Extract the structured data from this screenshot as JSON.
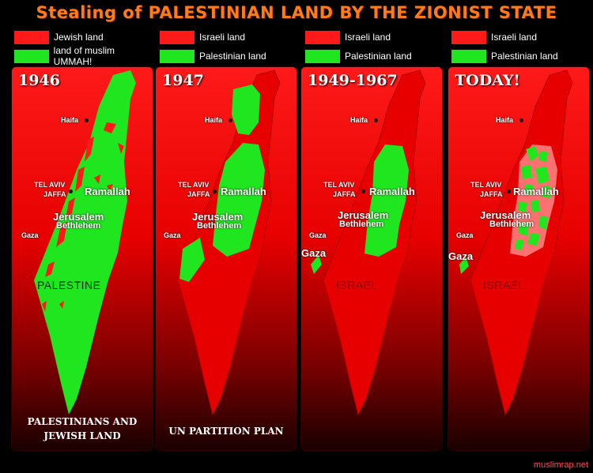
{
  "title": "Stealing of PALESTINIAN LAND BY THE ZIONIST STATE",
  "colors": {
    "red": "#ff1a1a",
    "green": "#1fe61f",
    "pink": "#ff7070",
    "title": "#ff7a1a"
  },
  "credit": "muslimrap.net",
  "panels": [
    {
      "legend": [
        {
          "color": "red",
          "label": "Jewish land"
        },
        {
          "color": "green",
          "label": "land of muslim UMMAH!"
        }
      ],
      "year": "1946",
      "cities": {
        "haifa": "Haifa",
        "telaviv": "TEL AVIV",
        "jaffa": "JAFFA",
        "ramallah": "Ramallah",
        "jerusalem": "Jerusalem",
        "bethlehem": "Bethlehem",
        "gaza": "Gaza"
      },
      "country": "PALESTINE",
      "caption": [
        "PALESTINIANS AND",
        "JEWISH LAND"
      ]
    },
    {
      "legend": [
        {
          "color": "red",
          "label": "Israeli land"
        },
        {
          "color": "green",
          "label": "Palestinian land"
        }
      ],
      "year": "1947",
      "cities": {
        "haifa": "Haifa",
        "telaviv": "TEL AVIV",
        "jaffa": "JAFFA",
        "ramallah": "Ramallah",
        "jerusalem": "Jerusalem",
        "bethlehem": "Bethlehem",
        "gaza": "Gaza"
      },
      "caption": [
        "UN PARTITION PLAN"
      ]
    },
    {
      "legend": [
        {
          "color": "red",
          "label": "Israeli land"
        },
        {
          "color": "green",
          "label": "Palestinian land"
        }
      ],
      "year": "1949-1967",
      "cities": {
        "haifa": "Haifa",
        "telaviv": "TEL AVIV",
        "jaffa": "JAFFA",
        "ramallah": "Ramallah",
        "jerusalem": "Jerusalem",
        "bethlehem": "Bethlehem",
        "gaza": "Gaza",
        "gaza2": "Gaza"
      },
      "country": "ISRAEL"
    },
    {
      "legend": [
        {
          "color": "red",
          "label": "Israeli land"
        },
        {
          "color": "green",
          "label": "Palestinian land"
        }
      ],
      "year": "TODAY!",
      "cities": {
        "haifa": "Haifa",
        "telaviv": "TEL AVIV",
        "jaffa": "JAFFA",
        "ramallah": "Ramallah",
        "jerusalem": "Jerusalem",
        "bethlehem": "Bethlehem",
        "gaza": "Gaza",
        "gaza2": "Gaza"
      },
      "country": "ISRAEL"
    }
  ]
}
